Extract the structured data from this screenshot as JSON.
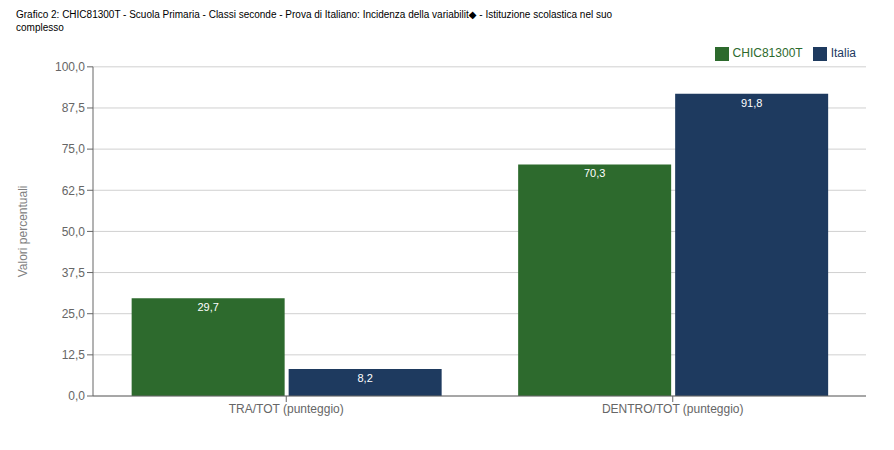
{
  "chart_data": {
    "type": "bar",
    "title": "Grafico 2: CHIC81300T - Scuola Primaria - Classi seconde - Prova di Italiano: Incidenza della variabilit◆ - Istituzione scolastica nel suo\ncomplesso",
    "categories": [
      "TRA/TOT (punteggio)",
      "DENTRO/TOT (punteggio)"
    ],
    "series": [
      {
        "name": "CHIC81300T",
        "color": "#2d6a2d",
        "values": [
          29.7,
          70.3
        ],
        "value_labels": [
          "29,7",
          "70,3"
        ]
      },
      {
        "name": "Italia",
        "color": "#1e3a5f",
        "values": [
          8.2,
          91.8
        ],
        "value_labels": [
          "8,2",
          "91,8"
        ]
      }
    ],
    "ylabel": "Valori percentuali",
    "ylim": [
      0,
      100
    ],
    "yticks": [
      {
        "value": 0.0,
        "label": "0,0"
      },
      {
        "value": 12.5,
        "label": "12,5"
      },
      {
        "value": 25.0,
        "label": "25,0"
      },
      {
        "value": 37.5,
        "label": "37,5"
      },
      {
        "value": 50.0,
        "label": "50,0"
      },
      {
        "value": 62.5,
        "label": "62,5"
      },
      {
        "value": 75.0,
        "label": "75,0"
      },
      {
        "value": 87.5,
        "label": "87,5"
      },
      {
        "value": 100.0,
        "label": "100,0"
      }
    ],
    "grid": true,
    "legend": "upper right",
    "data_labels": true
  }
}
